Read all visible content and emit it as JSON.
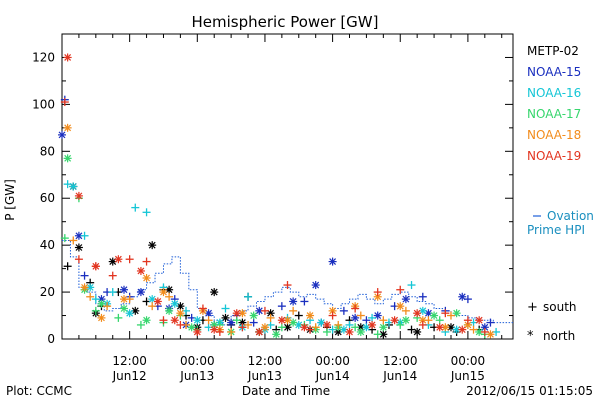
{
  "chart_data": {
    "type": "scatter",
    "title": "Hemispheric Power [GW]",
    "xlabel": "Date and Time",
    "ylabel": "P [GW]",
    "ylim": [
      0,
      130
    ],
    "yticks": [
      0,
      20,
      40,
      60,
      80,
      100,
      120
    ],
    "xlim_hours": [
      0,
      80
    ],
    "xticks": [
      {
        "hours": 12,
        "top": "12:00",
        "bottom": "Jun12"
      },
      {
        "hours": 24,
        "top": "00:00",
        "bottom": "Jun13"
      },
      {
        "hours": 36,
        "top": "12:00",
        "bottom": "Jun13"
      },
      {
        "hours": 48,
        "top": "00:00",
        "bottom": "Jun14"
      },
      {
        "hours": 60,
        "top": "12:00",
        "bottom": "Jun14"
      },
      {
        "hours": 72,
        "top": "00:00",
        "bottom": "Jun15"
      }
    ],
    "grid": false,
    "legend_placement": "right",
    "marker_legend": [
      {
        "symbol": "+",
        "label": "south"
      },
      {
        "symbol": "*",
        "label": "north"
      }
    ],
    "ovation_line": {
      "label_line1": "Ovation",
      "label_line2": "Prime HPI",
      "color": "#1f5fd8",
      "points": [
        [
          0.0,
          42
        ],
        [
          1.5,
          35
        ],
        [
          3.0,
          22
        ],
        [
          4.5,
          20
        ],
        [
          6.0,
          15
        ],
        [
          7.5,
          12
        ],
        [
          9.0,
          13
        ],
        [
          10.5,
          15
        ],
        [
          12.0,
          18
        ],
        [
          13.5,
          21
        ],
        [
          15.0,
          24
        ],
        [
          16.5,
          28
        ],
        [
          18.0,
          32
        ],
        [
          19.5,
          35
        ],
        [
          21.0,
          28
        ],
        [
          22.5,
          21
        ],
        [
          24.0,
          13
        ],
        [
          25.5,
          10
        ],
        [
          27.0,
          8
        ],
        [
          28.5,
          6
        ],
        [
          30.0,
          10
        ],
        [
          31.5,
          12
        ],
        [
          33.0,
          14
        ],
        [
          34.5,
          16
        ],
        [
          36.0,
          18
        ],
        [
          37.5,
          20
        ],
        [
          39.0,
          22
        ],
        [
          40.5,
          20
        ],
        [
          42.0,
          18
        ],
        [
          43.5,
          19
        ],
        [
          45.0,
          17
        ],
        [
          46.5,
          15
        ],
        [
          48.0,
          13
        ],
        [
          49.5,
          15
        ],
        [
          51.0,
          17
        ],
        [
          52.5,
          19
        ],
        [
          54.0,
          17
        ],
        [
          55.5,
          15
        ],
        [
          57.0,
          17
        ],
        [
          58.5,
          19
        ],
        [
          60.0,
          20
        ],
        [
          61.5,
          18
        ],
        [
          63.0,
          16
        ],
        [
          64.5,
          15
        ],
        [
          66.0,
          13
        ],
        [
          67.5,
          12
        ],
        [
          69.0,
          10
        ],
        [
          70.5,
          10
        ],
        [
          72.0,
          9
        ],
        [
          73.5,
          8
        ],
        [
          75.0,
          8
        ],
        [
          76.5,
          7
        ],
        [
          78.0,
          7
        ],
        [
          80.0,
          7
        ]
      ]
    },
    "series": [
      {
        "name": "METP-02",
        "color": "#000000",
        "south": [
          [
            1,
            31
          ],
          [
            5,
            24
          ],
          [
            7,
            14
          ],
          [
            10,
            20
          ],
          [
            15,
            16
          ],
          [
            18,
            21
          ],
          [
            22,
            10
          ],
          [
            25,
            8
          ],
          [
            30,
            6
          ],
          [
            33,
            18
          ],
          [
            38,
            4
          ],
          [
            42,
            10
          ],
          [
            47,
            5
          ],
          [
            51,
            8
          ],
          [
            55,
            4
          ],
          [
            58,
            6
          ],
          [
            62,
            4
          ],
          [
            66,
            5
          ],
          [
            70,
            3
          ],
          [
            74,
            4
          ]
        ],
        "north": [
          [
            2,
            65
          ],
          [
            3,
            39
          ],
          [
            6,
            11
          ],
          [
            9,
            33
          ],
          [
            13,
            12
          ],
          [
            16,
            40
          ],
          [
            19,
            21
          ],
          [
            21,
            14
          ],
          [
            24,
            5
          ],
          [
            27,
            20
          ],
          [
            29,
            9
          ],
          [
            32,
            7
          ],
          [
            35,
            3
          ],
          [
            37,
            11
          ],
          [
            40,
            5
          ],
          [
            44,
            4
          ],
          [
            49,
            3
          ],
          [
            53,
            5
          ],
          [
            57,
            2
          ],
          [
            63,
            3
          ],
          [
            69,
            5
          ]
        ]
      },
      {
        "name": "NOAA-15",
        "color": "#1a2fbf",
        "south": [
          [
            0.5,
            102
          ],
          [
            4,
            27
          ],
          [
            8,
            20
          ],
          [
            12,
            18
          ],
          [
            17,
            14
          ],
          [
            20,
            17
          ],
          [
            23,
            9
          ],
          [
            27,
            6
          ],
          [
            31,
            10
          ],
          [
            34,
            7
          ],
          [
            39,
            14
          ],
          [
            43,
            16
          ],
          [
            46,
            7
          ],
          [
            50,
            12
          ],
          [
            54,
            8
          ],
          [
            59,
            14
          ],
          [
            64,
            18
          ],
          [
            68,
            12
          ],
          [
            72,
            17
          ],
          [
            76,
            7
          ]
        ],
        "north": [
          [
            0,
            87
          ],
          [
            3,
            44
          ],
          [
            7,
            17
          ],
          [
            11,
            21
          ],
          [
            14,
            20
          ],
          [
            19,
            13
          ],
          [
            22,
            6
          ],
          [
            26,
            11
          ],
          [
            30,
            7
          ],
          [
            35,
            12
          ],
          [
            41,
            16
          ],
          [
            45,
            23
          ],
          [
            48,
            33
          ],
          [
            52,
            9
          ],
          [
            56,
            10
          ],
          [
            61,
            17
          ],
          [
            65,
            11
          ],
          [
            71,
            18
          ],
          [
            75,
            5
          ]
        ]
      },
      {
        "name": "NOAA-16",
        "color": "#15c6d6",
        "south": [
          [
            1,
            66
          ],
          [
            4,
            44
          ],
          [
            6,
            17
          ],
          [
            9,
            20
          ],
          [
            13,
            56
          ],
          [
            15,
            54
          ],
          [
            18,
            22
          ],
          [
            22,
            12
          ],
          [
            26,
            5
          ],
          [
            29,
            13
          ],
          [
            33,
            18
          ],
          [
            37,
            6
          ],
          [
            40,
            9
          ],
          [
            44,
            8
          ],
          [
            48,
            4
          ],
          [
            51,
            6
          ],
          [
            55,
            9
          ],
          [
            58,
            7
          ],
          [
            62,
            23
          ],
          [
            65,
            6
          ],
          [
            68,
            3
          ],
          [
            73,
            7
          ],
          [
            77,
            3
          ]
        ],
        "north": [
          [
            2,
            65
          ],
          [
            5,
            22
          ],
          [
            8,
            15
          ],
          [
            12,
            11
          ],
          [
            16,
            17
          ],
          [
            20,
            15
          ],
          [
            24,
            8
          ],
          [
            28,
            7
          ],
          [
            32,
            5
          ],
          [
            36,
            4
          ],
          [
            42,
            6
          ],
          [
            46,
            7
          ],
          [
            50,
            4
          ],
          [
            54,
            5
          ],
          [
            60,
            7
          ],
          [
            64,
            12
          ],
          [
            70,
            4
          ]
        ]
      },
      {
        "name": "NOAA-17",
        "color": "#36d66d",
        "south": [
          [
            0.5,
            43
          ],
          [
            3,
            60
          ],
          [
            6,
            12
          ],
          [
            10,
            9
          ],
          [
            14,
            6
          ],
          [
            18,
            7
          ],
          [
            21,
            10
          ],
          [
            24,
            4
          ],
          [
            28,
            6
          ],
          [
            31,
            8
          ],
          [
            35,
            3
          ],
          [
            39,
            5
          ],
          [
            43,
            6
          ],
          [
            47,
            3
          ],
          [
            52,
            5
          ],
          [
            56,
            2
          ],
          [
            60,
            6
          ],
          [
            63,
            9
          ],
          [
            67,
            8
          ],
          [
            72,
            6
          ],
          [
            75,
            2
          ]
        ],
        "north": [
          [
            1,
            77
          ],
          [
            4,
            21
          ],
          [
            7,
            15
          ],
          [
            11,
            13
          ],
          [
            15,
            8
          ],
          [
            19,
            12
          ],
          [
            23,
            5
          ],
          [
            27,
            6
          ],
          [
            30,
            3
          ],
          [
            34,
            10
          ],
          [
            38,
            2
          ],
          [
            41,
            7
          ],
          [
            45,
            4
          ],
          [
            49,
            5
          ],
          [
            53,
            3
          ],
          [
            57,
            5
          ],
          [
            61,
            8
          ],
          [
            66,
            10
          ],
          [
            70,
            11
          ],
          [
            74,
            3
          ]
        ]
      },
      {
        "name": "NOAA-18",
        "color": "#f28c1c",
        "south": [
          [
            2,
            42
          ],
          [
            5,
            18
          ],
          [
            8,
            14
          ],
          [
            12,
            17
          ],
          [
            16,
            14
          ],
          [
            19,
            18
          ],
          [
            22,
            6
          ],
          [
            26,
            8
          ],
          [
            30,
            3
          ],
          [
            33,
            6
          ],
          [
            37,
            9
          ],
          [
            41,
            12
          ],
          [
            45,
            5
          ],
          [
            49,
            6
          ],
          [
            53,
            10
          ],
          [
            57,
            8
          ],
          [
            61,
            12
          ],
          [
            65,
            8
          ],
          [
            69,
            10
          ],
          [
            73,
            4
          ]
        ],
        "north": [
          [
            1,
            90
          ],
          [
            4,
            22
          ],
          [
            7,
            9
          ],
          [
            11,
            17
          ],
          [
            15,
            26
          ],
          [
            18,
            20
          ],
          [
            21,
            11
          ],
          [
            25,
            12
          ],
          [
            28,
            4
          ],
          [
            32,
            11
          ],
          [
            36,
            5
          ],
          [
            40,
            8
          ],
          [
            44,
            10
          ],
          [
            48,
            12
          ],
          [
            52,
            14
          ],
          [
            56,
            18
          ],
          [
            60,
            14
          ],
          [
            64,
            8
          ],
          [
            68,
            5
          ],
          [
            72,
            6
          ],
          [
            76,
            2
          ]
        ]
      },
      {
        "name": "NOAA-19",
        "color": "#e23520",
        "south": [
          [
            0.5,
            101
          ],
          [
            3,
            34
          ],
          [
            6,
            31
          ],
          [
            9,
            27
          ],
          [
            12,
            34
          ],
          [
            15,
            33
          ],
          [
            18,
            8
          ],
          [
            21,
            6
          ],
          [
            25,
            13
          ],
          [
            28,
            3
          ],
          [
            32,
            5
          ],
          [
            36,
            12
          ],
          [
            40,
            23
          ],
          [
            44,
            4
          ],
          [
            48,
            10
          ],
          [
            52,
            13
          ],
          [
            56,
            20
          ],
          [
            60,
            21
          ],
          [
            64,
            6
          ],
          [
            68,
            11
          ],
          [
            72,
            8
          ],
          [
            75,
            3
          ]
        ],
        "north": [
          [
            1,
            120
          ],
          [
            3,
            61
          ],
          [
            6,
            31
          ],
          [
            10,
            34
          ],
          [
            14,
            29
          ],
          [
            17,
            16
          ],
          [
            20,
            8
          ],
          [
            24,
            3
          ],
          [
            27,
            4
          ],
          [
            31,
            11
          ],
          [
            35,
            3
          ],
          [
            39,
            8
          ],
          [
            43,
            5
          ],
          [
            47,
            6
          ],
          [
            51,
            3
          ],
          [
            55,
            6
          ],
          [
            59,
            8
          ],
          [
            63,
            11
          ],
          [
            67,
            5
          ],
          [
            71,
            4
          ],
          [
            74,
            8
          ]
        ]
      }
    ]
  },
  "footer": {
    "plot_source": "Plot: CCMC",
    "timestamp": "2012/06/15 01:15:05"
  }
}
